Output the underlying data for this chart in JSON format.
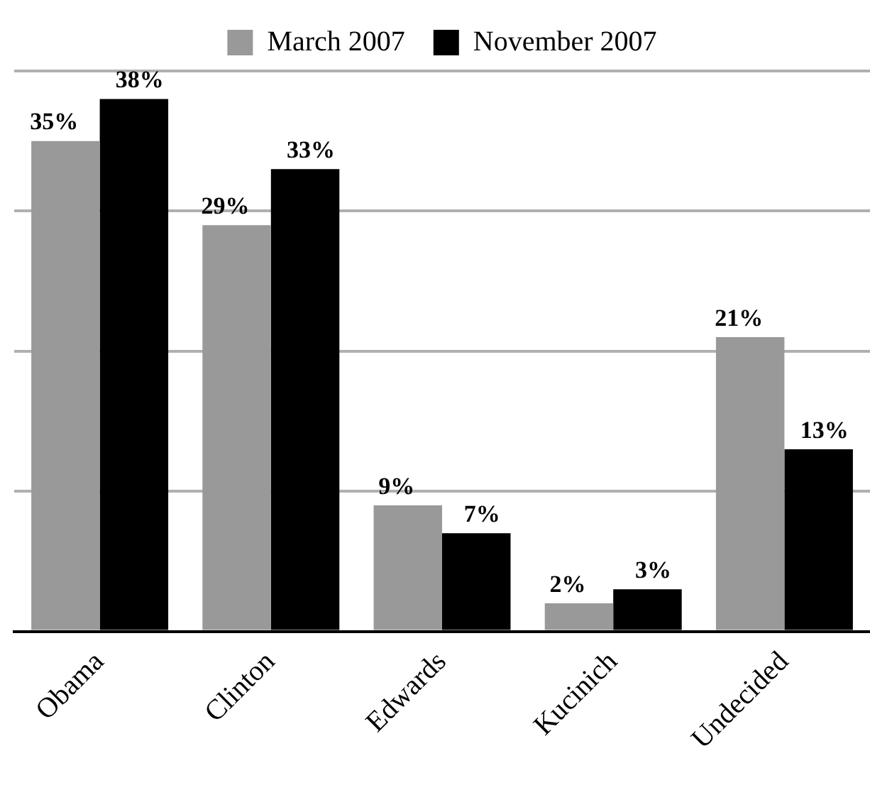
{
  "chart_data": {
    "type": "bar",
    "categories": [
      "Obama",
      "Clinton",
      "Edwards",
      "Kucinich",
      "Undecided"
    ],
    "series": [
      {
        "name": "March 2007",
        "color": "#999999",
        "values": [
          35,
          29,
          9,
          2,
          21
        ],
        "value_labels": [
          "35%",
          "29%",
          "9%",
          "2%",
          "21%"
        ]
      },
      {
        "name": "November 2007",
        "color": "#000000",
        "values": [
          38,
          33,
          7,
          3,
          13
        ],
        "value_labels": [
          "38%",
          "33%",
          "7%",
          "3%",
          "13%"
        ]
      }
    ],
    "grid": "y",
    "legend": "top",
    "tick_labels": "x"
  }
}
